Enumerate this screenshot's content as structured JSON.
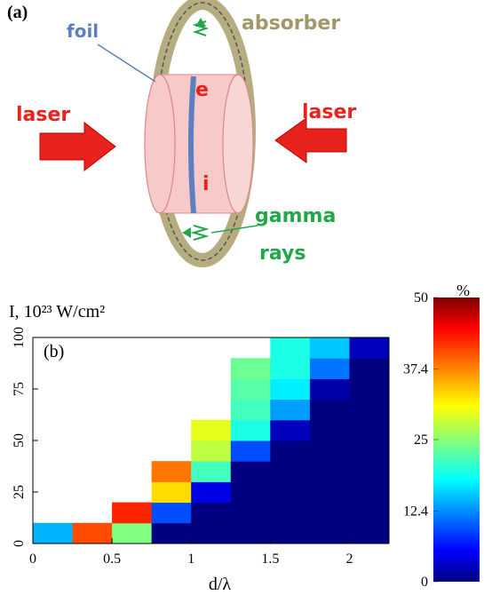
{
  "panel_a": {
    "label": "(a)",
    "foil": "foil",
    "absorber": "absorber",
    "laser_left": "laser",
    "laser_right": "laser",
    "electron": "e",
    "ion": "i",
    "gamma_rays": [
      "gamma",
      "rays"
    ]
  },
  "chart_data": {
    "type": "heatmap",
    "panel_label": "(b)",
    "y_label": "I, 10²³ W/cm²",
    "x_label": "d/λ",
    "xlim": [
      0,
      2.25
    ],
    "xticks": [
      0,
      0.5,
      1,
      1.5,
      2
    ],
    "ylim": [
      0,
      100
    ],
    "yticks": [
      0,
      25,
      50,
      75,
      100
    ],
    "x_bins": [
      0,
      0.25,
      0.5,
      0.75,
      1,
      1.25,
      1.5,
      1.75,
      2,
      2.25
    ],
    "y_bins": [
      0,
      10,
      20,
      30,
      40,
      50,
      60,
      70,
      80,
      90,
      100
    ],
    "z": [
      [
        15,
        40,
        25,
        0,
        0,
        0,
        0,
        0,
        0
      ],
      [
        null,
        null,
        42,
        10,
        0,
        0,
        0,
        0,
        0
      ],
      [
        null,
        null,
        null,
        33,
        5,
        0,
        0,
        0,
        0
      ],
      [
        null,
        null,
        null,
        38,
        22,
        0,
        0,
        0,
        0
      ],
      [
        null,
        null,
        null,
        null,
        28,
        10,
        0,
        0,
        0
      ],
      [
        null,
        null,
        null,
        null,
        30,
        20,
        3,
        0,
        0
      ],
      [
        null,
        null,
        null,
        null,
        null,
        22,
        14,
        0,
        0
      ],
      [
        null,
        null,
        null,
        null,
        null,
        23,
        18,
        2,
        0
      ],
      [
        null,
        null,
        null,
        null,
        null,
        24,
        20,
        12,
        0
      ],
      [
        null,
        null,
        null,
        null,
        null,
        null,
        20,
        16,
        3
      ]
    ],
    "colorbar": {
      "label": "%",
      "lim": [
        0,
        50
      ],
      "ticks": [
        0,
        12.4,
        25,
        37.4,
        50
      ]
    }
  }
}
